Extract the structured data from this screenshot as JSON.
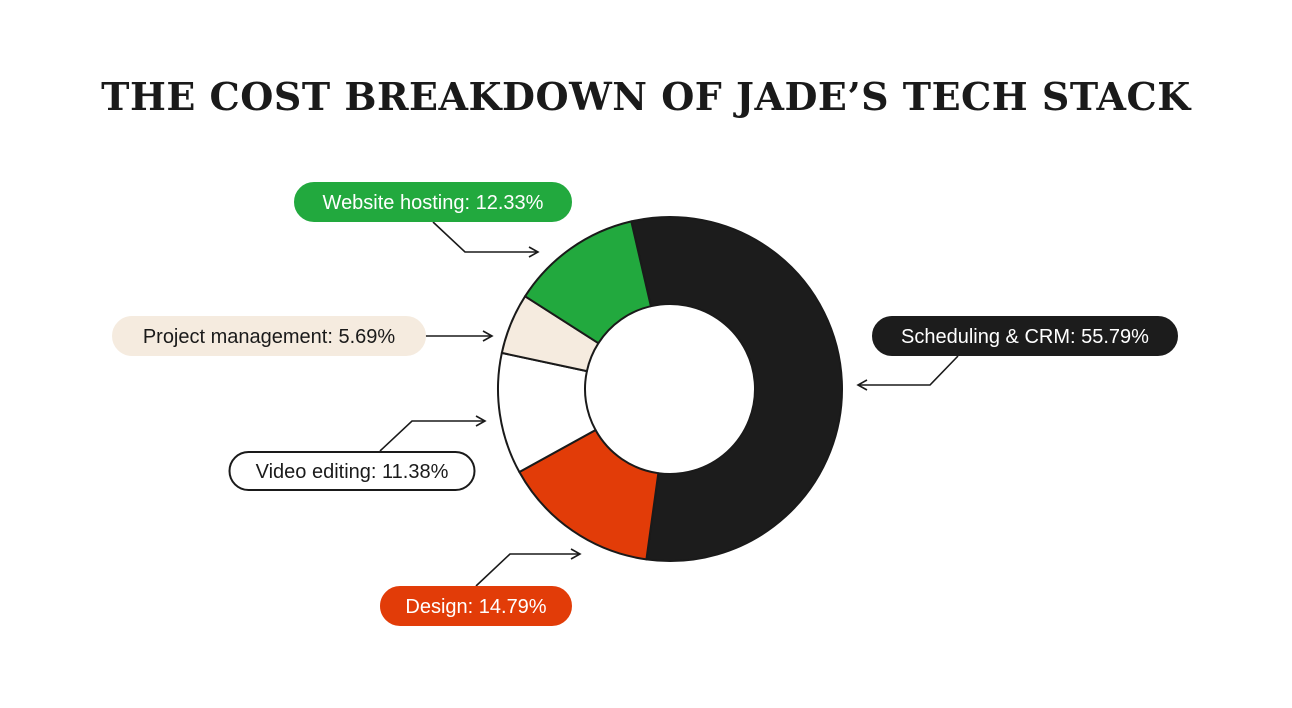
{
  "chart_data": {
    "type": "pie",
    "title": "THE COST BREAKDOWN OF JADE’S TECH STACK",
    "slices": [
      {
        "label": "Scheduling & CRM",
        "value": 55.79,
        "display": "Scheduling & CRM: 55.79%",
        "color": "#1c1c1c",
        "pill_bg": "#1c1c1c",
        "pill_text": "#ffffff",
        "pill_border": "#1c1c1c"
      },
      {
        "label": "Design",
        "value": 14.79,
        "display": "Design: 14.79%",
        "color": "#e23c08",
        "pill_bg": "#e23c08",
        "pill_text": "#ffffff",
        "pill_border": "#e23c08"
      },
      {
        "label": "Video editing",
        "value": 11.38,
        "display": "Video editing: 11.38%",
        "color": "#ffffff",
        "pill_bg": "#ffffff",
        "pill_text": "#1a1a1a",
        "pill_border": "#1a1a1a"
      },
      {
        "label": "Project management",
        "value": 5.69,
        "display": "Project management: 5.69%",
        "color": "#f5ebdf",
        "pill_bg": "#f5ebdf",
        "pill_text": "#1a1a1a",
        "pill_border": "#f5ebdf"
      },
      {
        "label": "Website hosting",
        "value": 12.33,
        "display": "Website hosting: 12.33%",
        "color": "#22a93e",
        "pill_bg": "#22a93e",
        "pill_text": "#ffffff",
        "pill_border": "#22a93e"
      }
    ],
    "donut": true,
    "legend": "none"
  }
}
